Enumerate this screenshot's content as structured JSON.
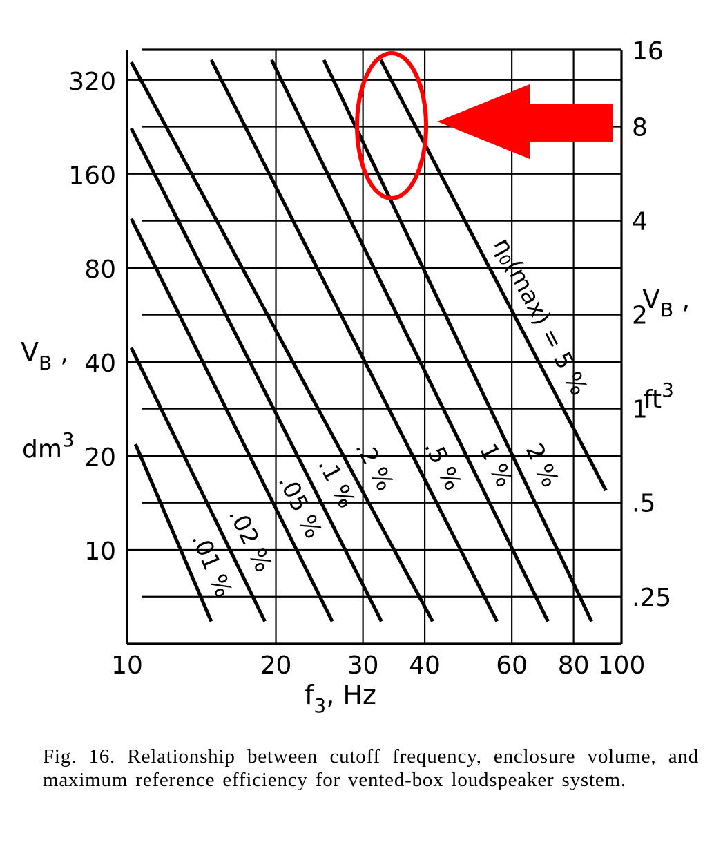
{
  "chart_data": {
    "type": "line",
    "xscale": "log",
    "yscale": "log",
    "xlim": [
      10,
      100
    ],
    "ylim": [
      5,
      400
    ],
    "x_ticks": [
      10,
      20,
      30,
      40,
      60,
      80,
      100
    ],
    "x_tick_labels": [
      "10",
      "20",
      "30",
      "40",
      "60",
      "80",
      "100"
    ],
    "xlabel": {
      "main": "f",
      "sub": "3",
      "rest": ",  Hz"
    },
    "y_ticks_left": [
      10,
      20,
      40,
      80,
      160,
      320
    ],
    "y_tick_labels_left": [
      "10",
      "20",
      "40",
      "80",
      "160",
      "320"
    ],
    "ylabel_left": {
      "main": "V",
      "sub": "B",
      "rest": " ,",
      "unit": "dm",
      "unit_sup": "3"
    },
    "y_ticks_right_ft3": [
      0.25,
      0.5,
      1,
      2,
      4,
      8,
      16
    ],
    "y_tick_labels_right": [
      ".25",
      ".5",
      "1",
      "2",
      "4",
      "8",
      "16"
    ],
    "ylabel_right": {
      "main": "V",
      "sub": "B",
      "rest": " ,",
      "unit": "ft",
      "unit_sup": "3"
    },
    "grid": true,
    "series": [
      {
        "name": ".01 %",
        "x": [
          10.4,
          14.8
        ],
        "y": [
          21.8,
          5.9
        ]
      },
      {
        "name": ".02 %",
        "x": [
          10.2,
          19.0
        ],
        "y": [
          44.4,
          5.9
        ]
      },
      {
        "name": ".05 %",
        "x": [
          10.2,
          26.0
        ],
        "y": [
          115,
          5.9
        ]
      },
      {
        "name": ".1 %",
        "x": [
          10.2,
          32.7
        ],
        "y": [
          224,
          5.9
        ]
      },
      {
        "name": ".2 %",
        "x": [
          10.2,
          41.5
        ],
        "y": [
          365,
          5.9
        ]
      },
      {
        "name": ".5 %",
        "x": [
          14.8,
          56.0
        ],
        "y": [
          371,
          5.9
        ]
      },
      {
        "name": "1 %",
        "x": [
          19.6,
          71.0
        ],
        "y": [
          371,
          5.9
        ]
      },
      {
        "name": "2 %",
        "x": [
          25.0,
          87.0
        ],
        "y": [
          371,
          5.9
        ]
      },
      {
        "name": "η0(max) = 5 %",
        "label_main": "η",
        "label_sub": "0",
        "label_rest": "(max) = 5 %",
        "x": [
          32.6,
          93.0
        ],
        "y": [
          371,
          15.5
        ]
      }
    ],
    "annotations": [
      {
        "type": "ellipse",
        "color": "#ff0000"
      },
      {
        "type": "arrow",
        "direction": "left",
        "color": "#ff0000"
      }
    ]
  },
  "caption": "Fig. 16. Relationship between cutoff frequency, enclosure volume, and maximum reference efficiency for vented-box loudspeaker system.",
  "colors": {
    "ink": "#000000",
    "highlight": "#ff0000",
    "background": "#ffffff"
  }
}
